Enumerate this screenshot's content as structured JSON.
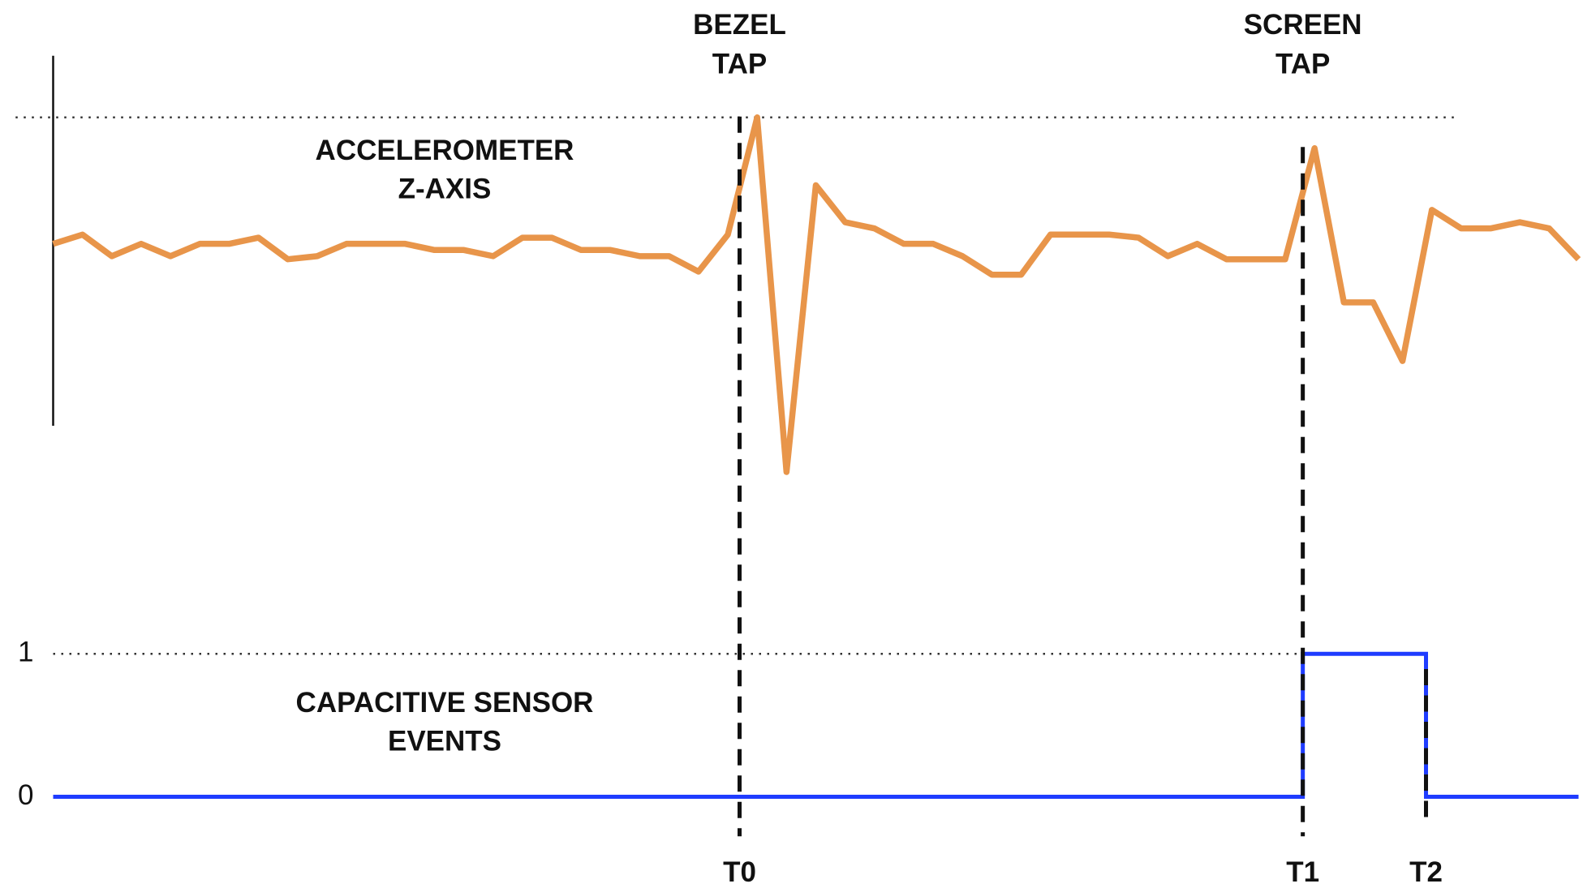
{
  "chart_data": [
    {
      "type": "line",
      "label": [
        "ACCELEROMETER",
        "Z-AXIS"
      ],
      "x": [
        0,
        1,
        2,
        3,
        4,
        5,
        6,
        7,
        8,
        9,
        10,
        11,
        12,
        13,
        14,
        15,
        16,
        17,
        18,
        19,
        20,
        21,
        22,
        23,
        24,
        25,
        26,
        27,
        28,
        29,
        30,
        31,
        32,
        33,
        34,
        35,
        36,
        37,
        38,
        39,
        40,
        41,
        42,
        43,
        44,
        45,
        46,
        47,
        48,
        49,
        50,
        51,
        52
      ],
      "series": [
        {
          "color": "#e8954a",
          "values": [
            5.9,
            6.2,
            5.5,
            5.9,
            5.5,
            5.9,
            5.9,
            6.1,
            5.4,
            5.5,
            5.9,
            5.9,
            5.9,
            5.7,
            5.7,
            5.5,
            6.1,
            6.1,
            5.7,
            5.7,
            5.5,
            5.5,
            5.0,
            6.2,
            10,
            -1.5,
            7.8,
            6.6,
            6.4,
            5.9,
            5.9,
            5.5,
            4.9,
            4.9,
            6.2,
            6.2,
            6.2,
            6.1,
            5.5,
            5.9,
            5.4,
            5.4,
            5.4,
            9.0,
            4.0,
            4.0,
            2.1,
            7.0,
            6.4,
            6.4,
            6.6,
            6.4,
            5.4
          ]
        }
      ],
      "xlim": [
        0,
        52
      ],
      "ylim": [
        0,
        12
      ],
      "reference_line": 10
    },
    {
      "type": "step",
      "label": [
        "CAPACITIVE SENSOR",
        "EVENTS"
      ],
      "x": [
        0,
        42.6,
        46.8,
        52
      ],
      "series": [
        {
          "color": "#1f3cff",
          "values": [
            0,
            1,
            0,
            0
          ]
        }
      ],
      "xlim": [
        0,
        52
      ],
      "ylim": [
        0,
        1
      ],
      "yticks": [
        0,
        1
      ],
      "grid": true,
      "markers": [
        {
          "label": "T0",
          "x": 23.4,
          "annotation": [
            "BEZEL",
            "TAP"
          ]
        },
        {
          "label": "T1",
          "x": 42.6,
          "annotation": [
            "SCREEN",
            "TAP"
          ]
        },
        {
          "label": "T2",
          "x": 46.8
        }
      ]
    }
  ]
}
